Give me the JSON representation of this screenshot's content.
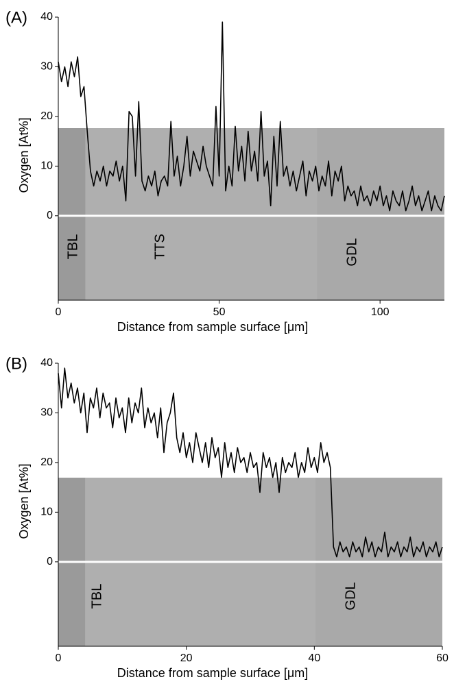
{
  "chart_data": [
    {
      "type": "line",
      "panel_label": "(A)",
      "xlabel": "Distance from sample surface [μm]",
      "ylabel": "Oxygen [At%]",
      "annotations": [
        "TBL",
        "TTS",
        "GDL"
      ],
      "color": "#000000",
      "xlim": [
        0,
        120
      ],
      "xticks": [
        0,
        50,
        100
      ],
      "ylim": [
        -17,
        40
      ],
      "yticks": [
        0,
        10,
        20,
        30,
        40
      ],
      "x": [
        0,
        1,
        2,
        3,
        4,
        5,
        6,
        7,
        8,
        9,
        10,
        11,
        12,
        13,
        14,
        15,
        16,
        17,
        18,
        19,
        20,
        21,
        22,
        23,
        24,
        25,
        26,
        27,
        28,
        29,
        30,
        31,
        32,
        33,
        34,
        35,
        36,
        37,
        38,
        39,
        40,
        41,
        42,
        43,
        44,
        45,
        46,
        47,
        48,
        49,
        50,
        51,
        52,
        53,
        54,
        55,
        56,
        57,
        58,
        59,
        60,
        61,
        62,
        63,
        64,
        65,
        66,
        67,
        68,
        69,
        70,
        71,
        72,
        73,
        74,
        75,
        76,
        77,
        78,
        79,
        80,
        81,
        82,
        83,
        84,
        85,
        86,
        87,
        88,
        89,
        90,
        91,
        92,
        93,
        94,
        95,
        96,
        97,
        98,
        99,
        100,
        101,
        102,
        103,
        104,
        105,
        106,
        107,
        108,
        109,
        110,
        111,
        112,
        113,
        114,
        115,
        116,
        117,
        118,
        119,
        120
      ],
      "values": [
        31,
        27,
        30,
        26,
        31,
        28,
        32,
        24,
        26,
        17,
        9,
        6,
        9,
        7,
        10,
        6,
        9,
        8,
        11,
        7,
        10,
        3,
        21,
        20,
        8,
        23,
        7,
        5,
        8,
        6,
        9,
        4,
        7,
        8,
        6,
        19,
        8,
        12,
        6,
        10,
        16,
        8,
        13,
        11,
        9,
        14,
        10,
        8,
        6,
        22,
        8,
        39,
        5,
        10,
        6,
        18,
        9,
        14,
        7,
        17,
        9,
        13,
        7,
        21,
        8,
        11,
        2,
        16,
        6,
        19,
        8,
        10,
        6,
        9,
        5,
        8,
        11,
        4,
        9,
        7,
        10,
        5,
        8,
        6,
        11,
        4,
        9,
        7,
        10,
        3,
        6,
        4,
        5,
        2,
        6,
        3,
        4,
        2,
        5,
        3,
        6,
        2,
        4,
        1,
        5,
        3,
        2,
        5,
        1,
        3,
        6,
        2,
        4,
        1,
        3,
        5,
        1,
        4,
        2,
        1,
        4
      ]
    },
    {
      "type": "line",
      "panel_label": "(B)",
      "xlabel": "Distance from sample surface [μm]",
      "ylabel": "Oxygen [At%]",
      "annotations": [
        "TBL",
        "GDL"
      ],
      "color": "#000000",
      "xlim": [
        0,
        60
      ],
      "xticks": [
        0,
        20,
        40,
        60
      ],
      "ylim": [
        -17,
        40
      ],
      "yticks": [
        0,
        10,
        20,
        30,
        40
      ],
      "x": [
        0,
        0.5,
        1,
        1.5,
        2,
        2.5,
        3,
        3.5,
        4,
        4.5,
        5,
        5.5,
        6,
        6.5,
        7,
        7.5,
        8,
        8.5,
        9,
        9.5,
        10,
        10.5,
        11,
        11.5,
        12,
        12.5,
        13,
        13.5,
        14,
        14.5,
        15,
        15.5,
        16,
        16.5,
        17,
        17.5,
        18,
        18.5,
        19,
        19.5,
        20,
        20.5,
        21,
        21.5,
        22,
        22.5,
        23,
        23.5,
        24,
        24.5,
        25,
        25.5,
        26,
        26.5,
        27,
        27.5,
        28,
        28.5,
        29,
        29.5,
        30,
        30.5,
        31,
        31.5,
        32,
        32.5,
        33,
        33.5,
        34,
        34.5,
        35,
        35.5,
        36,
        36.5,
        37,
        37.5,
        38,
        38.5,
        39,
        39.5,
        40,
        40.5,
        41,
        41.5,
        42,
        42.5,
        43,
        43.5,
        44,
        44.5,
        45,
        45.5,
        46,
        46.5,
        47,
        47.5,
        48,
        48.5,
        49,
        49.5,
        50,
        50.5,
        51,
        51.5,
        52,
        52.5,
        53,
        53.5,
        54,
        54.5,
        55,
        55.5,
        56,
        56.5,
        57,
        57.5,
        58,
        58.5,
        59,
        59.5,
        60
      ],
      "values": [
        38,
        31,
        39,
        33,
        36,
        32,
        35,
        30,
        34,
        26,
        33,
        31,
        35,
        29,
        34,
        31,
        32,
        27,
        33,
        29,
        31,
        26,
        33,
        28,
        32,
        30,
        35,
        27,
        31,
        28,
        30,
        25,
        31,
        22,
        28,
        30,
        34,
        25,
        22,
        26,
        21,
        24,
        20,
        26,
        23,
        20,
        24,
        19,
        25,
        21,
        23,
        17,
        24,
        19,
        22,
        18,
        23,
        20,
        21,
        18,
        22,
        19,
        20,
        14,
        22,
        19,
        21,
        17,
        20,
        14,
        21,
        18,
        20,
        19,
        22,
        17,
        20,
        18,
        23,
        19,
        21,
        18,
        24,
        20,
        22,
        19,
        3,
        1,
        4,
        2,
        3,
        1,
        4,
        2,
        3,
        1,
        5,
        2,
        4,
        1,
        3,
        2,
        6,
        1,
        3,
        2,
        4,
        1,
        3,
        2,
        5,
        1,
        3,
        2,
        4,
        1,
        3,
        2,
        4,
        1,
        3
      ]
    }
  ]
}
